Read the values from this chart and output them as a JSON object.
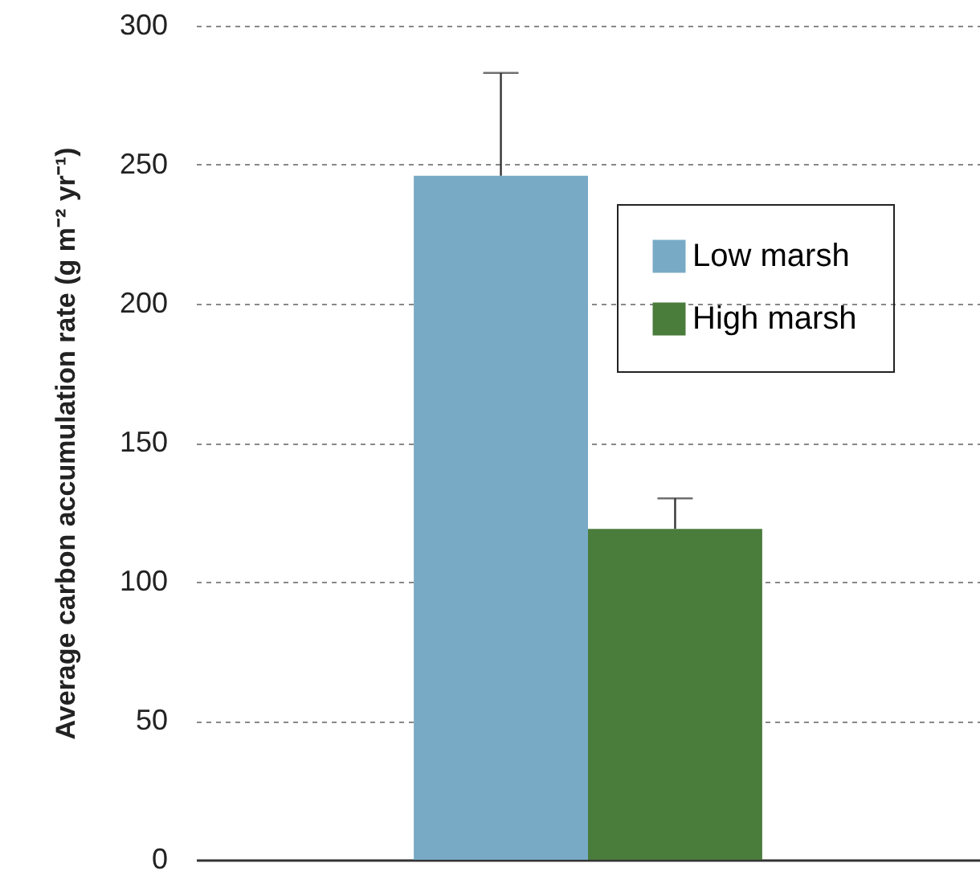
{
  "chart_data": {
    "type": "bar",
    "ylabel": "Average carbon accumulation rate (g m⁻² yr⁻¹)",
    "categories": [
      null
    ],
    "series": [
      {
        "name": "Low marsh",
        "color": "#78aac6",
        "values": [
          246
        ],
        "errors": [
          [
            246,
            283
          ]
        ]
      },
      {
        "name": "High marsh",
        "color": "#4a7c3c",
        "values": [
          119
        ],
        "errors": [
          [
            119,
            130
          ]
        ]
      }
    ],
    "ylim": [
      0,
      300
    ],
    "yticks": [
      0,
      50,
      100,
      150,
      200,
      250,
      300
    ],
    "grid": "y",
    "legend": "top right"
  }
}
